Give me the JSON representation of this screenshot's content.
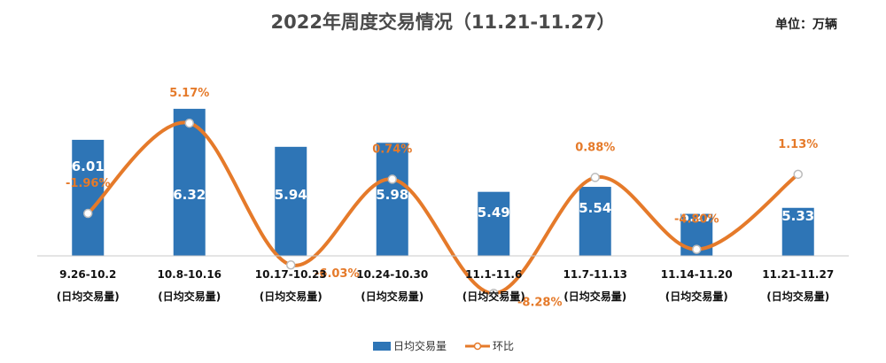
{
  "chart_data": {
    "type": "bar",
    "title": "2022年周度交易情况（11.21-11.27）",
    "unit_label": "单位：万辆",
    "categories": [
      [
        "9.26-10.2",
        "(日均交易量)"
      ],
      [
        "10.8-10.16",
        "(日均交易量)"
      ],
      [
        "10.17-10.23",
        "(日均交易量)"
      ],
      [
        "10.24-10.30",
        "(日均交易量)"
      ],
      [
        "11.1-11.6",
        "(日均交易量)"
      ],
      [
        "11.7-11.13",
        "(日均交易量)"
      ],
      [
        "11.14-11.20",
        "(日均交易量)"
      ],
      [
        "11.21-11.27",
        "(日均交易量)"
      ]
    ],
    "series": [
      {
        "name": "日均交易量",
        "type": "bar",
        "color": "#2e75b6",
        "values": [
          6.01,
          6.32,
          5.94,
          5.98,
          5.49,
          5.54,
          5.27,
          5.33
        ],
        "labels": [
          "6.01",
          "6.32",
          "5.94",
          "5.98",
          "5.49",
          "5.54",
          "5.27",
          "5.33"
        ]
      },
      {
        "name": "环比",
        "type": "line",
        "color": "#e57a2a",
        "values": [
          -1.96,
          5.17,
          -6.03,
          0.74,
          -8.28,
          0.88,
          -4.8,
          1.13
        ],
        "labels": [
          "-1.96%",
          "5.17%",
          "-6.03%",
          "0.74%",
          "-8.28%",
          "0.88%",
          "-4.80%",
          "1.13%"
        ]
      }
    ],
    "grid": false,
    "legend_position": "bottom"
  }
}
